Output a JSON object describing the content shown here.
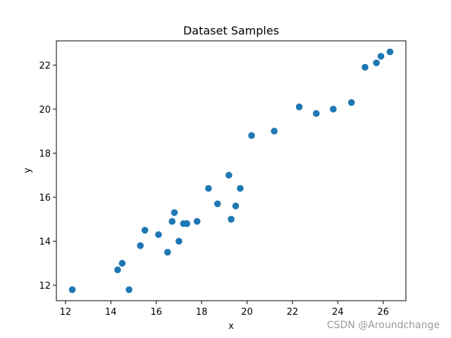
{
  "chart_data": {
    "type": "scatter",
    "title": "Dataset Samples",
    "xlabel": "x",
    "ylabel": "y",
    "xlim": [
      11.6,
      27.0
    ],
    "ylim": [
      11.3,
      23.1
    ],
    "xticks": [
      12,
      14,
      16,
      18,
      20,
      22,
      24,
      26
    ],
    "yticks": [
      12,
      14,
      16,
      18,
      20,
      22
    ],
    "grid": false,
    "marker_color": "#1f77b4",
    "points": [
      {
        "x": 12.3,
        "y": 11.8
      },
      {
        "x": 14.3,
        "y": 12.7
      },
      {
        "x": 14.5,
        "y": 13.0
      },
      {
        "x": 14.8,
        "y": 11.8
      },
      {
        "x": 15.3,
        "y": 13.8
      },
      {
        "x": 15.5,
        "y": 14.5
      },
      {
        "x": 16.1,
        "y": 14.3
      },
      {
        "x": 16.5,
        "y": 13.5
      },
      {
        "x": 16.7,
        "y": 14.9
      },
      {
        "x": 16.8,
        "y": 15.3
      },
      {
        "x": 17.0,
        "y": 14.0
      },
      {
        "x": 17.2,
        "y": 14.8
      },
      {
        "x": 17.35,
        "y": 14.8
      },
      {
        "x": 17.8,
        "y": 14.9
      },
      {
        "x": 18.3,
        "y": 16.4
      },
      {
        "x": 18.7,
        "y": 15.7
      },
      {
        "x": 19.2,
        "y": 17.0
      },
      {
        "x": 19.3,
        "y": 15.0
      },
      {
        "x": 19.5,
        "y": 15.6
      },
      {
        "x": 19.7,
        "y": 16.4
      },
      {
        "x": 20.2,
        "y": 18.8
      },
      {
        "x": 21.2,
        "y": 19.0
      },
      {
        "x": 22.3,
        "y": 20.1
      },
      {
        "x": 23.05,
        "y": 19.8
      },
      {
        "x": 23.8,
        "y": 20.0
      },
      {
        "x": 24.6,
        "y": 20.3
      },
      {
        "x": 25.2,
        "y": 21.9
      },
      {
        "x": 25.7,
        "y": 22.1
      },
      {
        "x": 25.9,
        "y": 22.4
      },
      {
        "x": 26.3,
        "y": 22.6
      }
    ]
  },
  "watermark": "CSDN @Aroundchange"
}
